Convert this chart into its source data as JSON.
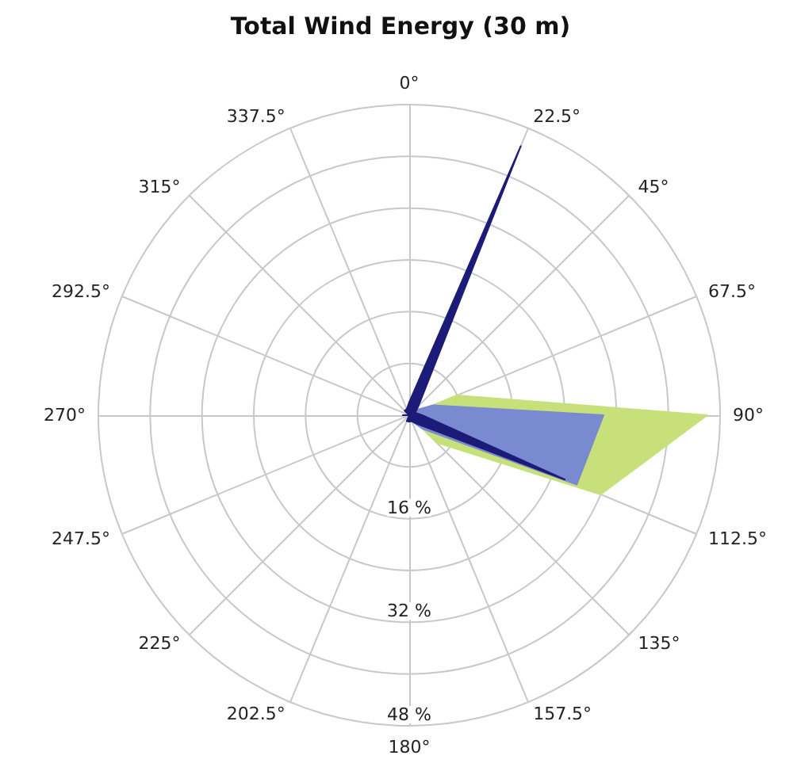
{
  "chart_data": {
    "type": "radar",
    "title": "Total Wind Energy (30 m)",
    "categories": [
      "0°",
      "22.5°",
      "45°",
      "67.5°",
      "90°",
      "112.5°",
      "135°",
      "157.5°",
      "180°",
      "202.5°",
      "225°",
      "247.5°",
      "270°",
      "292.5°",
      "315°",
      "337.5°"
    ],
    "series": [
      {
        "color": "#c8e07a",
        "values": [
          0,
          0,
          0,
          8,
          46,
          32,
          6,
          0,
          0,
          0,
          0,
          0,
          0,
          0,
          0,
          0
        ]
      },
      {
        "color": "#7a8ad0",
        "values": [
          1,
          2,
          1,
          4,
          30,
          28,
          3,
          1,
          0,
          0,
          0,
          0,
          0,
          0,
          0,
          0
        ]
      },
      {
        "color": "#1c1c78",
        "values": [
          2,
          45,
          2,
          1,
          2,
          26,
          2,
          1,
          1,
          1,
          0,
          0,
          1,
          0,
          1,
          1
        ]
      }
    ],
    "ylim": [
      0,
      48
    ],
    "yticks": [
      {
        "value": 16,
        "label": "16 %"
      },
      {
        "value": 32,
        "label": "32 %"
      },
      {
        "value": 48,
        "label": "48 %"
      }
    ],
    "grid": true
  }
}
